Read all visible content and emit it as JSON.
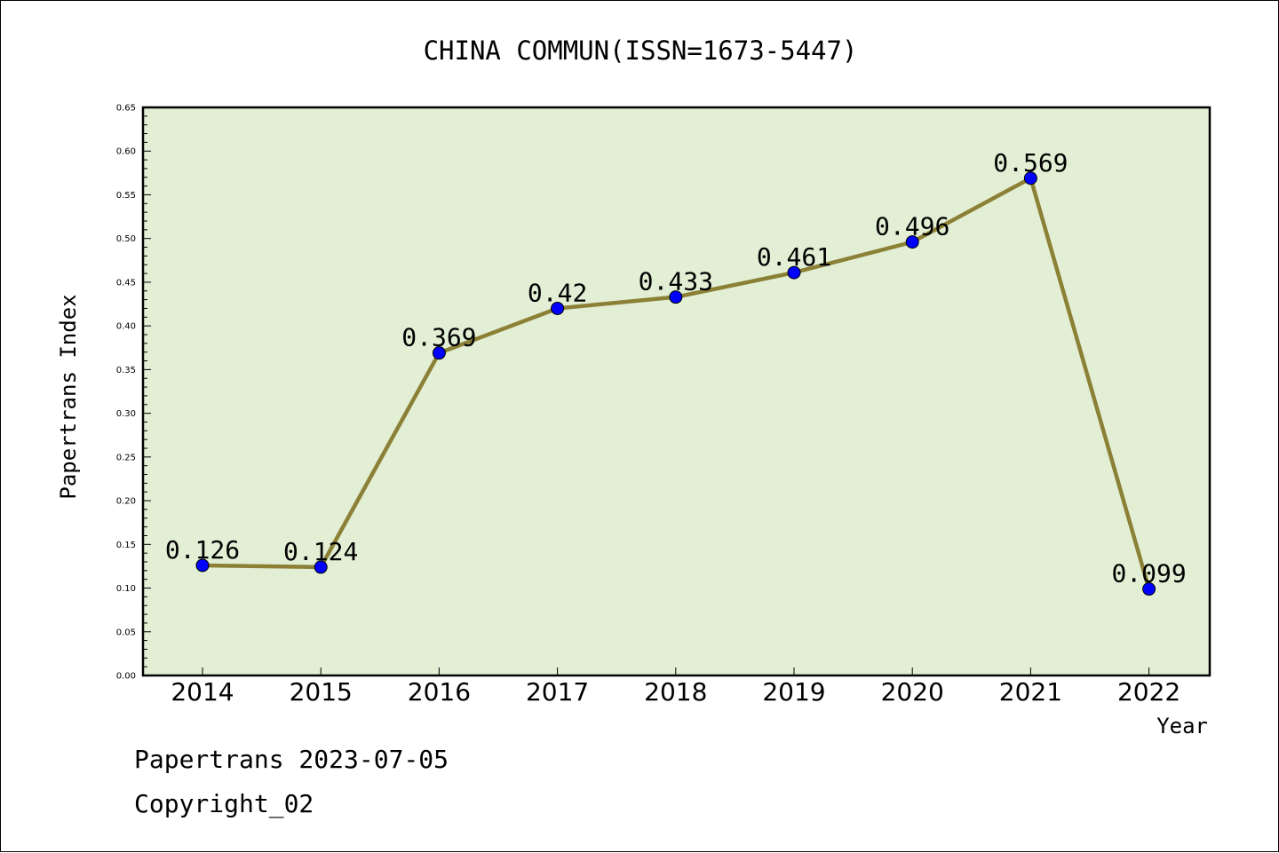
{
  "chart_data": {
    "type": "line",
    "title": "CHINA COMMUN(ISSN=1673-5447)",
    "xlabel": "Year",
    "ylabel": "Papertrans Index",
    "categories": [
      "2014",
      "2015",
      "2016",
      "2017",
      "2018",
      "2019",
      "2020",
      "2021",
      "2022"
    ],
    "values": [
      0.126,
      0.124,
      0.369,
      0.42,
      0.433,
      0.461,
      0.496,
      0.569,
      0.099
    ],
    "data_labels": [
      "0.126",
      "0.124",
      "0.369",
      "0.42",
      "0.433",
      "0.461",
      "0.496",
      "0.569",
      "0.099"
    ],
    "ylim": [
      0,
      0.65
    ],
    "yticks": [
      "0.00",
      "0.05",
      "0.10",
      "0.15",
      "0.20",
      "0.25",
      "0.30",
      "0.35",
      "0.40",
      "0.45",
      "0.50",
      "0.55",
      "0.60",
      "0.65"
    ],
    "grid": false,
    "colors": {
      "plot_background": "#e2efd5",
      "line": "#8b8035",
      "marker": "#0000ff"
    }
  },
  "footer": {
    "line1": "Papertrans 2023-07-05",
    "line2": "Copyright_02"
  }
}
